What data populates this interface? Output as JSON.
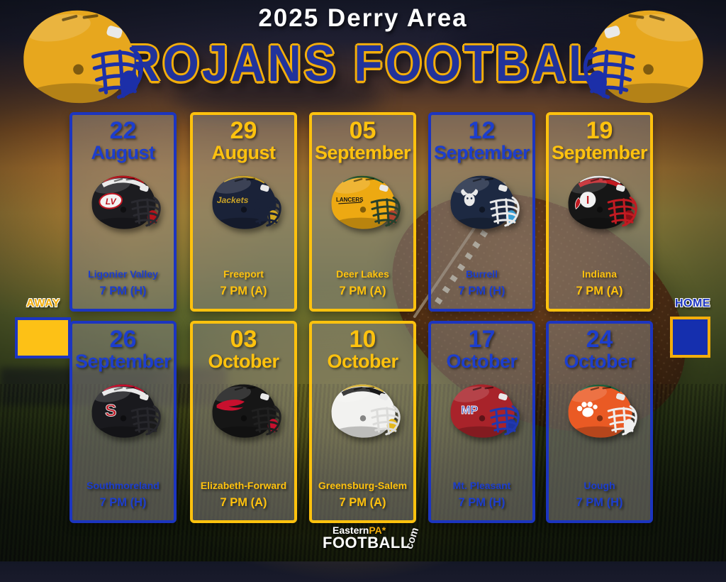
{
  "title": {
    "season_line": "2025 Derry Area",
    "main_line": "TROJANS FOOTBALL"
  },
  "legend": {
    "away_label": "AWAY",
    "home_label": "HOME",
    "away_color": "#fdc116",
    "home_color": "#152fae"
  },
  "colors": {
    "blue": "#1c35c0",
    "gold": "#ffc20e",
    "title_blue": "#21339b",
    "title_outline_gold": "#f3ae0b"
  },
  "derry_helmet": {
    "name": "derry-trojans-helmet",
    "shell": "#e7a71e",
    "mask": "#1c2fa8",
    "chin": "#1c2fa8",
    "stripes": [],
    "logo": {
      "type": "none"
    }
  },
  "games": [
    {
      "day": "22",
      "month": "August",
      "opponent": "Ligonier Valley",
      "time": "7 PM (H)",
      "site": "home",
      "helmet": {
        "shell": "#1c1c20",
        "mask": "#2a2a30",
        "chin": "#b5121b",
        "stripes": [
          "#b5121b",
          "#e8e8e8"
        ],
        "logo": {
          "type": "oval-text",
          "text": "LV",
          "bg": "#f2f2f2",
          "fill": "#c01622",
          "stroke": "#c01622"
        }
      }
    },
    {
      "day": "29",
      "month": "August",
      "opponent": "Freeport",
      "time": "7 PM (A)",
      "site": "away",
      "helmet": {
        "shell": "#1a2238",
        "mask": "#1a2238",
        "chin": "#d4aa1e",
        "stripes": [
          "#c9a227"
        ],
        "logo": {
          "type": "script",
          "text": "Jackets",
          "fill": "#c9a227"
        }
      }
    },
    {
      "day": "05",
      "month": "September",
      "opponent": "Deer Lakes",
      "time": "7 PM (A)",
      "site": "away",
      "helmet": {
        "shell": "#eda912",
        "mask": "#26402c",
        "chin": "#b3422e",
        "stripes": [
          "#24512f"
        ],
        "logo": {
          "type": "block",
          "text": "LANCERS",
          "fill": "#141414"
        }
      }
    },
    {
      "day": "12",
      "month": "September",
      "opponent": "Burrell",
      "time": "7 PM (H)",
      "site": "home",
      "helmet": {
        "shell": "#1d2942",
        "mask": "#e9e9e9",
        "chin": "#3a9fd4",
        "stripes": [],
        "logo": {
          "type": "bull"
        }
      }
    },
    {
      "day": "19",
      "month": "September",
      "opponent": "Indiana",
      "time": "7 PM (A)",
      "site": "away",
      "helmet": {
        "shell": "#161616",
        "mask": "#c11b22",
        "chin": "#8a0f16",
        "stripes": [
          "#e8e8e8",
          "#c11b22"
        ],
        "logo": {
          "type": "circle-text",
          "text": "I",
          "bg": "#f2f2f2",
          "fill": "#c11b22"
        }
      }
    },
    {
      "day": "26",
      "month": "September",
      "opponent": "Southmoreland",
      "time": "7 PM (H)",
      "site": "home",
      "helmet": {
        "shell": "#19191d",
        "mask": "#26262b",
        "chin": "#1a1a1a",
        "stripes": [
          "#c8102e",
          "#e8e8e8"
        ],
        "logo": {
          "type": "letter",
          "text": "S",
          "fill": "#c01622",
          "stroke": "#e8e8e8",
          "size": 26
        }
      }
    },
    {
      "day": "03",
      "month": "October",
      "opponent": "Elizabeth-Forward",
      "time": "7 PM (A)",
      "site": "away",
      "helmet": {
        "shell": "#161616",
        "mask": "#202020",
        "chin": "#c8102e",
        "stripes": [],
        "logo": {
          "type": "wing",
          "fill": "#c8102e"
        }
      }
    },
    {
      "day": "10",
      "month": "October",
      "opponent": "Greensburg-Salem",
      "time": "7 PM (A)",
      "site": "away",
      "helmet": {
        "shell": "#f2f2f0",
        "mask": "#dcdcda",
        "chin": "#e3b71e",
        "stripes": [
          "#d7b338",
          "#1a1a1a"
        ],
        "logo": {
          "type": "none"
        }
      }
    },
    {
      "day": "17",
      "month": "October",
      "opponent": "Mt. Pleasant",
      "time": "7 PM (H)",
      "site": "home",
      "helmet": {
        "shell": "#a8232a",
        "mask": "#2038b0",
        "chin": "#1d33a0",
        "stripes": [],
        "logo": {
          "type": "letter",
          "text": "MP",
          "fill": "#2038b0",
          "stroke": "#ffffff",
          "size": 17
        }
      }
    },
    {
      "day": "24",
      "month": "October",
      "opponent": "Uough",
      "time": "7 PM (H)",
      "site": "home",
      "helmet": {
        "shell": "#ea5a24",
        "mask": "#efefef",
        "chin": "#efefef",
        "stripes": [
          "#1c5e3e"
        ],
        "logo": {
          "type": "paw",
          "fill": "#ffffff"
        }
      }
    }
  ],
  "footer": {
    "top_left": "Eastern",
    "top_right": "PA",
    "star": "*",
    "bottom": "FOOTBALL",
    "suffix": "com"
  }
}
